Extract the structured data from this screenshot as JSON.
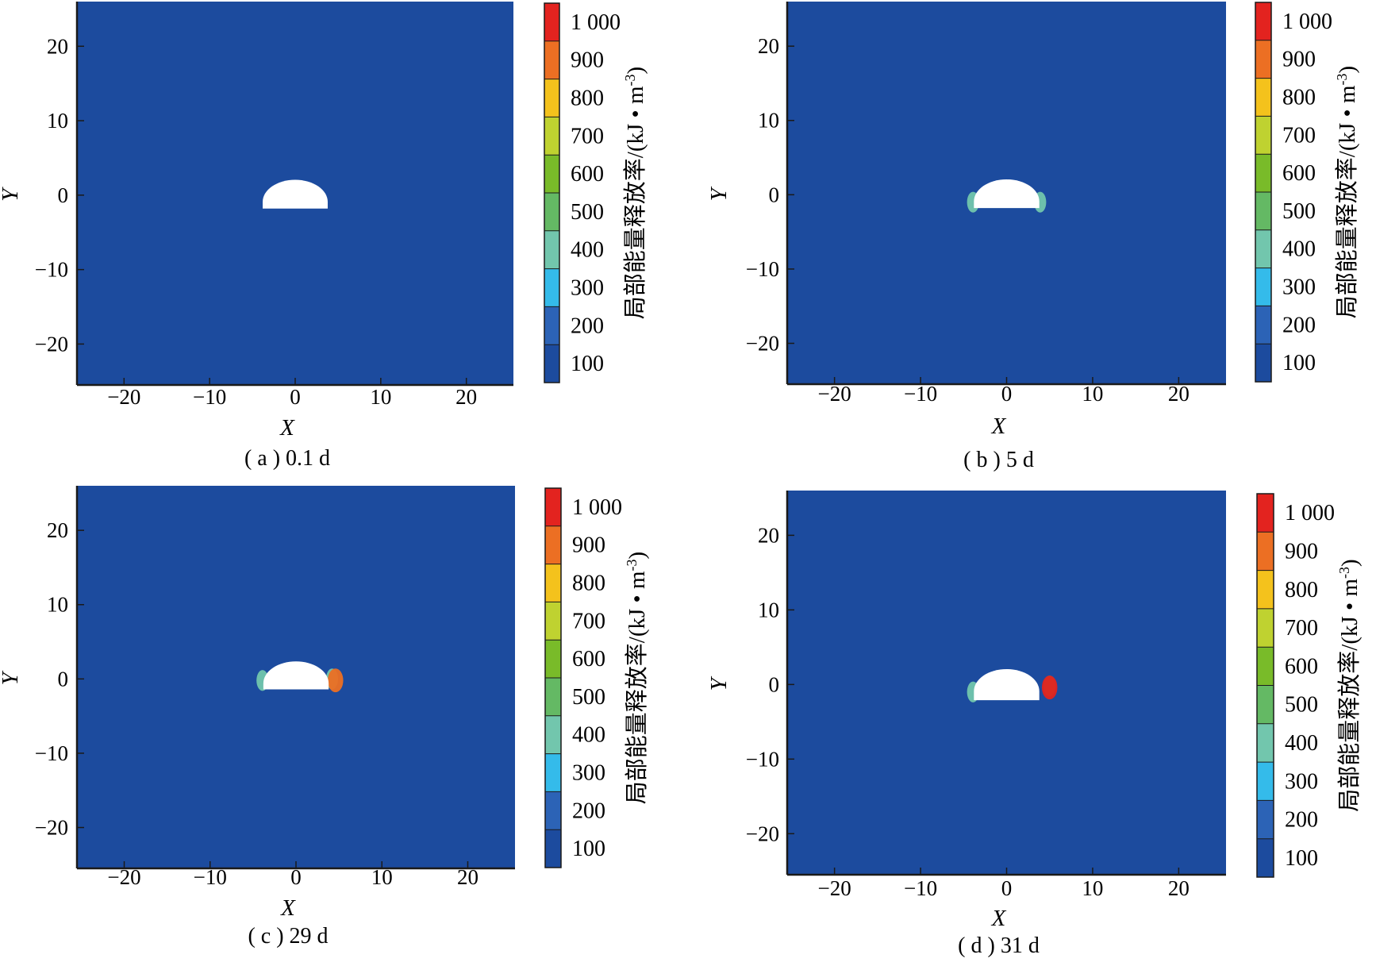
{
  "colors": {
    "background_field": "#1c4b9e",
    "levels": [
      "#1c4b9e",
      "#2c63b6",
      "#34bbea",
      "#72c6ad",
      "#64b964",
      "#79bb29",
      "#bfd230",
      "#f4c21c",
      "#ec6f23",
      "#e3231f"
    ]
  },
  "chart_data": [
    {
      "type": "heatmap",
      "caption": "( a ) 0.1 d",
      "xlabel": "X",
      "ylabel": "Y",
      "xticks": [
        -20,
        -10,
        0,
        10,
        20
      ],
      "yticks": [
        20,
        10,
        0,
        -10,
        -20
      ],
      "xlim": [
        -25.5,
        25.5
      ],
      "ylim": [
        -25.5,
        26
      ],
      "opening": {
        "x_range": [
          -3.8,
          3.8
        ],
        "y_base": -1.8,
        "arch_radius": 3.8,
        "arch_center_y": -0.9
      },
      "colorbar": {
        "label": "局部能量释放率/(kJ • m",
        "unit_sup": "-3",
        "label_end": ")",
        "tick_labels": [
          "100",
          "200",
          "300",
          "400",
          "500",
          "600",
          "700",
          "800",
          "900",
          "1 000"
        ]
      },
      "hotspots": []
    },
    {
      "type": "heatmap",
      "caption": "( b ) 5 d",
      "xlabel": "X",
      "ylabel": "Y",
      "xticks": [
        -20,
        -10,
        0,
        10,
        20
      ],
      "yticks": [
        20,
        10,
        0,
        -10,
        -20
      ],
      "xlim": [
        -25.5,
        25.5
      ],
      "ylim": [
        -25.5,
        26
      ],
      "opening": {
        "x_range": [
          -3.8,
          3.8
        ],
        "y_base": -1.8,
        "arch_radius": 3.8,
        "arch_center_y": -0.9
      },
      "colorbar": {
        "label": "局部能量释放率/(kJ • m",
        "unit_sup": "-3",
        "label_end": ")",
        "tick_labels": [
          "100",
          "200",
          "300",
          "400",
          "500",
          "600",
          "700",
          "800",
          "900",
          "1 000"
        ]
      },
      "hotspots": [
        {
          "x": -3.9,
          "y": -1.0,
          "level": 3
        },
        {
          "x": 3.9,
          "y": -1.0,
          "level": 3
        }
      ]
    },
    {
      "type": "heatmap",
      "caption": "( c ) 29 d",
      "xlabel": "X",
      "ylabel": "Y",
      "xticks": [
        -20,
        -10,
        0,
        10,
        20
      ],
      "yticks": [
        20,
        10,
        0,
        -10,
        -20
      ],
      "xlim": [
        -25.5,
        25.5
      ],
      "ylim": [
        -25.5,
        26
      ],
      "opening": {
        "x_range": [
          -3.8,
          3.8
        ],
        "y_base": -1.4,
        "arch_radius": 3.8,
        "arch_center_y": -0.6
      },
      "colorbar": {
        "label": "局部能量释放率/(kJ • m",
        "unit_sup": "-3",
        "label_end": ")",
        "tick_labels": [
          "100",
          "200",
          "300",
          "400",
          "500",
          "600",
          "700",
          "800",
          "900",
          "1 000"
        ]
      },
      "hotspots": [
        {
          "x": -3.9,
          "y": -0.2,
          "level": 3
        },
        {
          "x": 4.2,
          "y": 0.0,
          "level": 3
        },
        {
          "x": 4.6,
          "y": -0.2,
          "level": 8
        }
      ]
    },
    {
      "type": "heatmap",
      "caption": "( d ) 31 d",
      "xlabel": "X",
      "ylabel": "Y",
      "xticks": [
        -20,
        -10,
        0,
        10,
        20
      ],
      "yticks": [
        20,
        10,
        0,
        -10,
        -20
      ],
      "xlim": [
        -25.5,
        25.5
      ],
      "ylim": [
        -25.5,
        26
      ],
      "opening": {
        "x_range": [
          -3.8,
          3.8
        ],
        "y_base": -2.1,
        "arch_radius": 3.8,
        "arch_center_y": -0.9
      },
      "colorbar": {
        "label": "局部能量释放率/(kJ • m",
        "unit_sup": "-3",
        "label_end": ")",
        "tick_labels": [
          "100",
          "200",
          "300",
          "400",
          "500",
          "600",
          "700",
          "800",
          "900",
          "1 000"
        ]
      },
      "hotspots": [
        {
          "x": -3.9,
          "y": -1.0,
          "level": 3
        },
        {
          "x": 5.0,
          "y": -0.2,
          "level": 4
        },
        {
          "x": 5.0,
          "y": -0.4,
          "level": 9
        }
      ]
    }
  ]
}
